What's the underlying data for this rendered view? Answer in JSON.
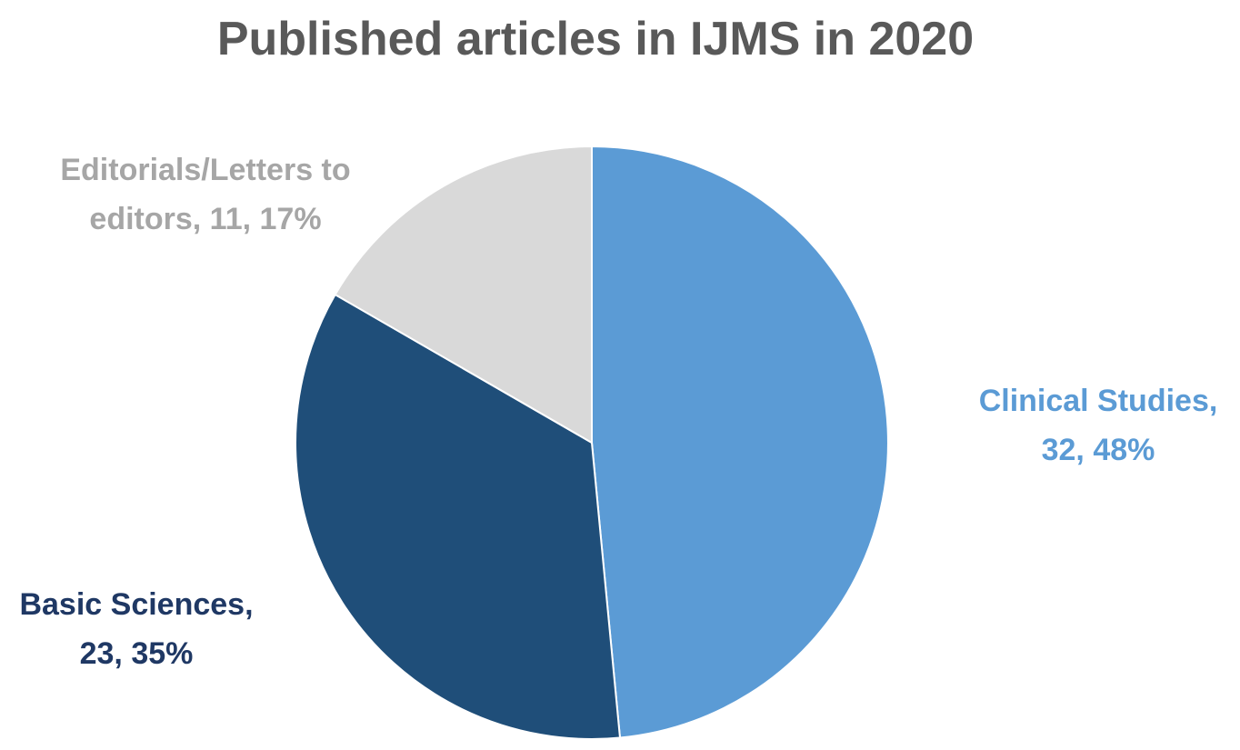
{
  "chart_data": {
    "type": "pie",
    "title": "Published articles in IJMS in 2020",
    "title_color": "#595959",
    "legend": "none",
    "slices": [
      {
        "category": "Clinical Studies",
        "value": 32,
        "percent": 48,
        "color": "#5B9BD5",
        "label_color": "#5B9BD5",
        "label_lines": [
          "Clinical Studies,",
          "32, 48%"
        ]
      },
      {
        "category": "Basic Sciences",
        "value": 23,
        "percent": 35,
        "color": "#1F4E79",
        "label_color": "#1F3864",
        "label_lines": [
          "Basic Sciences,",
          "23, 35%"
        ]
      },
      {
        "category": "Editorials/Letters to editors",
        "value": 11,
        "percent": 17,
        "color": "#D9D9D9",
        "label_color": "#A6A6A6",
        "label_lines": [
          "Editorials/Letters to",
          "editors, 11, 17%"
        ]
      }
    ]
  }
}
